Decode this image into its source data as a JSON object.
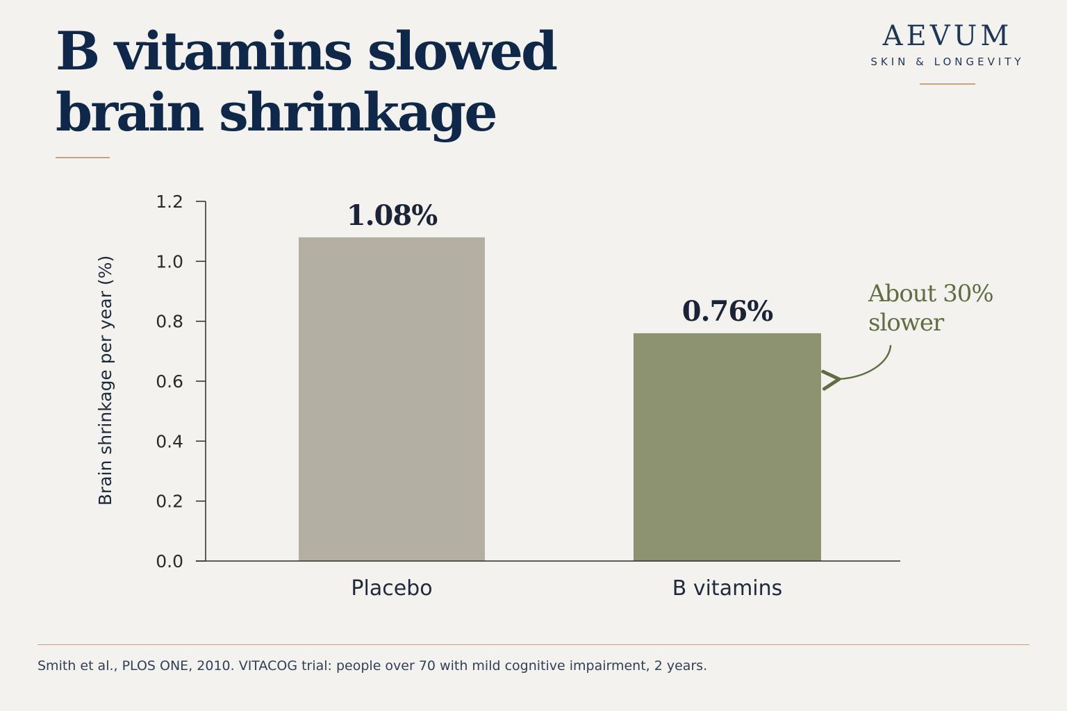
{
  "brand": {
    "name": "AEVUM",
    "tagline": "SKIN & LONGEVITY"
  },
  "colors": {
    "background": "#f4f2ee",
    "title": "#0f2748",
    "accent_rule": "#c7a27e",
    "placebo_bar": "#b3afa2",
    "b_vitamins_bar": "#8d9270",
    "annotation": "#5f6e42"
  },
  "chart_data": {
    "type": "bar",
    "title": "B vitamins slowed brain shrinkage",
    "xlabel": "",
    "ylabel": "Brain shrinkage per year (%)",
    "ylim": [
      0,
      1.2
    ],
    "yticks": [
      "0.0",
      "0.2",
      "0.4",
      "0.6",
      "0.8",
      "1.0",
      "1.2"
    ],
    "categories": [
      "Placebo",
      "B vitamins"
    ],
    "values": [
      1.08,
      0.76
    ],
    "data_labels": [
      "1.08%",
      "0.76%"
    ],
    "annotation": "About 30% slower",
    "grid": false
  },
  "footer": {
    "source": "Smith et al., PLOS ONE, 2010. VITACOG trial: people over 70 with mild cognitive impairment, 2 years."
  }
}
